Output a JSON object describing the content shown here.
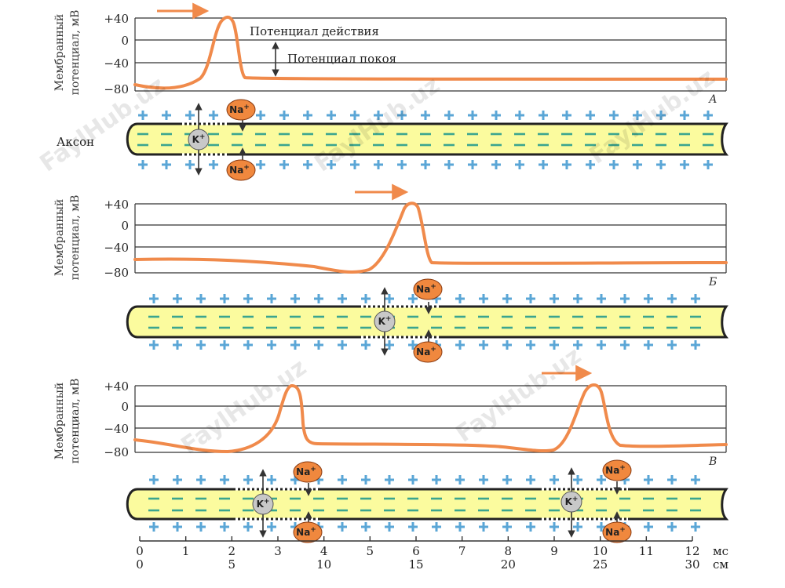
{
  "labels": {
    "y_axis_line1": "Мембранный",
    "y_axis_line2": "потенциал, мВ",
    "action_potential": "Потенциал действия",
    "resting_potential": "Потенциал покоя",
    "axon": "Аксон",
    "ion_na": "Na",
    "ion_k": "K",
    "ion_charge": "+",
    "time_unit": "мс",
    "distance_unit": "см",
    "watermark": "FaylHub.uz"
  },
  "y_ticks": [
    "+40",
    "0",
    "−40",
    "−80"
  ],
  "panels": [
    {
      "letter": "А"
    },
    {
      "letter": "Б"
    },
    {
      "letter": "В"
    }
  ],
  "time_ticks": [
    "0",
    "1",
    "2",
    "3",
    "4",
    "5",
    "6",
    "7",
    "8",
    "9",
    "10",
    "11",
    "12"
  ],
  "distance_ticks": [
    {
      "label": "0",
      "ms": 0
    },
    {
      "label": "5",
      "ms": 2
    },
    {
      "label": "10",
      "ms": 4
    },
    {
      "label": "15",
      "ms": 6
    },
    {
      "label": "20",
      "ms": 8
    },
    {
      "label": "25",
      "ms": 10
    },
    {
      "label": "30",
      "ms": 12
    }
  ],
  "chart_data": {
    "type": "line",
    "x_unit": "мс",
    "y_unit": "мВ",
    "ylim": [
      -80,
      40
    ],
    "resting_mv": -65,
    "peak_mv": 40,
    "panels": [
      {
        "letter": "А",
        "peaks_ms": [
          2
        ]
      },
      {
        "letter": "Б",
        "peaks_ms": [
          6
        ]
      },
      {
        "letter": "В",
        "peaks_ms": [
          3.3,
          10
        ]
      }
    ]
  },
  "colors": {
    "trace": "#f08a4b",
    "axon_fill": "#fbfb9e",
    "plus": "#5aa6d6",
    "minus": "#3aa58f",
    "na_ball": "#f0883e",
    "k_ball": "#c8c8c8"
  }
}
